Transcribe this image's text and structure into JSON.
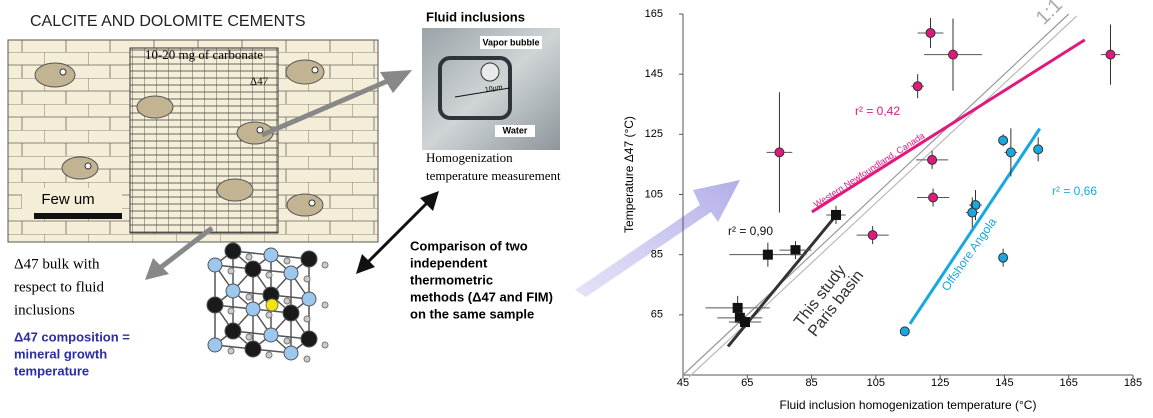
{
  "diagram": {
    "title": "CALCITE AND DOLOMITE CEMENTS",
    "sample_label": "10-20 mg of carbonate",
    "delta_label": "Δ47",
    "scale_label": "Few um",
    "fluid_title": "Fluid inclusions",
    "vapor_label": "Vapor bubble",
    "size_label": "10µm",
    "water_label": "Water",
    "fluid_caption": [
      "Homogenization",
      "temperature measurement"
    ],
    "bulk_caption": [
      "Δ47 bulk with",
      "respect to fluid",
      "inclusions"
    ],
    "composition_caption": [
      "Δ47 composition =",
      "mineral growth",
      "temperature"
    ],
    "comparison": [
      "Comparison of two",
      "independent",
      "thermometric",
      "methods (Δ47 and FIM)",
      "on the same sample"
    ]
  },
  "chart_data": {
    "type": "scatter",
    "xlabel": "Fluid inclusion homogenization temperature (°C)",
    "ylabel": "Temperature Δ47 (°C)",
    "xlim": [
      45,
      185
    ],
    "ylim": [
      45,
      165
    ],
    "xticks": [
      45,
      65,
      85,
      105,
      125,
      145,
      165,
      185
    ],
    "yticks": [
      65,
      85,
      105,
      125,
      145,
      165
    ],
    "identity_label": "1:1",
    "series": [
      {
        "label": "Western Newfoundland, Canada",
        "color": "#e0197d",
        "marker": "circle",
        "r2_label": "r² = 0,42",
        "x": [
          122,
          129,
          178,
          118,
          75,
          122.5,
          122.8,
          104
        ],
        "values": [
          158.7,
          151.5,
          151.5,
          141,
          119,
          116.5,
          104,
          91.5
        ],
        "xerr": [
          4,
          9,
          3,
          2,
          4,
          5,
          5,
          5
        ],
        "yerr": [
          5,
          12,
          10,
          4,
          20,
          3,
          3,
          3
        ],
        "fit_x": [
          85.1,
          170
        ],
        "fit_y": [
          99.2,
          156.4
        ]
      },
      {
        "label": "Offshore Angola",
        "color": "#18a8e0",
        "marker": "circle",
        "r2_label": "r² = 0,66",
        "x": [
          144.6,
          147,
          155.5,
          136,
          135,
          144.6,
          114
        ],
        "values": [
          123,
          119,
          120,
          101.5,
          99,
          84,
          59.5
        ],
        "xerr": [
          1,
          2,
          1,
          2,
          2,
          1,
          1
        ],
        "yerr": [
          2,
          8,
          4,
          5,
          5,
          3,
          1
        ],
        "fit_x": [
          115.6,
          156
        ],
        "fit_y": [
          62,
          126.9
        ]
      },
      {
        "label_lines": [
          "This study",
          "Paris basin"
        ],
        "color": "#111111",
        "marker": "square",
        "r2_label": "r² = 0,90",
        "x": [
          92.6,
          80,
          71.4,
          62,
          62.7,
          64.3
        ],
        "values": [
          98.2,
          86.5,
          85,
          67.3,
          64,
          62.6
        ],
        "xerr": [
          3,
          5,
          12,
          10,
          7,
          5
        ],
        "yerr": [
          3,
          3,
          4,
          4,
          2,
          2
        ],
        "fit_x": [
          59,
          93.2
        ],
        "fit_y": [
          54.5,
          98.8
        ]
      }
    ]
  }
}
